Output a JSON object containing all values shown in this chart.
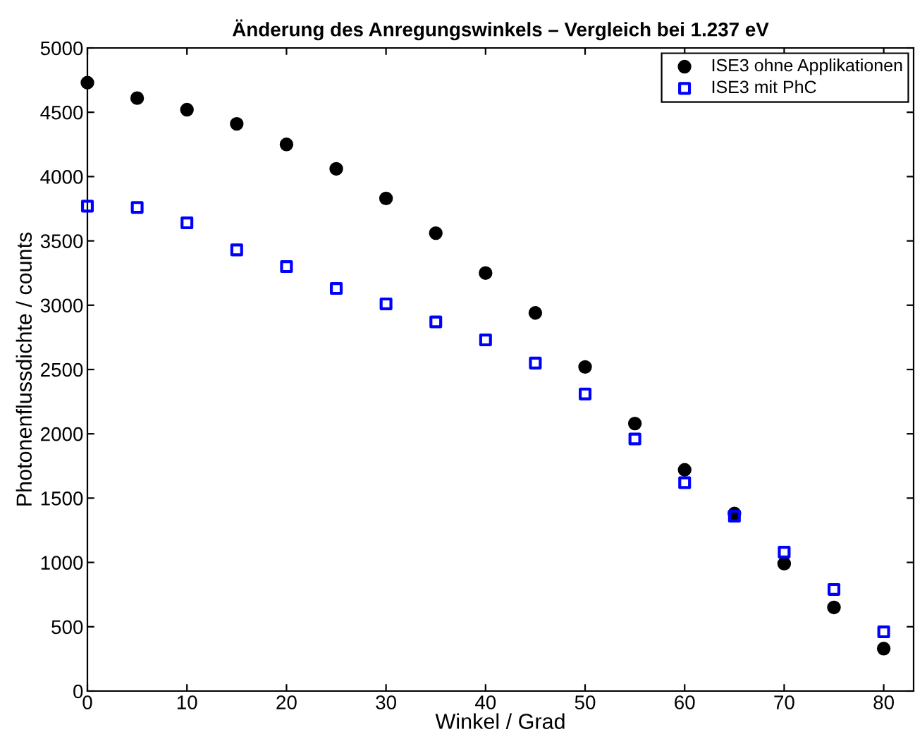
{
  "chart_data": {
    "type": "scatter",
    "title": "Änderung des Anregungswinkels – Vergleich bei 1.237 eV",
    "xlabel": "Winkel / Grad",
    "ylabel": "Photonenflussdichte / counts",
    "x": [
      0,
      5,
      10,
      15,
      20,
      25,
      30,
      35,
      40,
      45,
      50,
      55,
      60,
      65,
      70,
      75,
      80
    ],
    "series": [
      {
        "name": "ISE3 ohne Applikationen",
        "color": "#000000",
        "marker": "circle",
        "values": [
          4730,
          4610,
          4520,
          4410,
          4250,
          4060,
          3830,
          3560,
          3250,
          2940,
          2520,
          2080,
          1720,
          1380,
          990,
          650,
          330
        ]
      },
      {
        "name": "ISE3 mit PhC",
        "color": "#0000ff",
        "marker": "square",
        "values": [
          3770,
          3760,
          3640,
          3430,
          3300,
          3130,
          3010,
          2870,
          2730,
          2550,
          2310,
          1960,
          1620,
          1360,
          1080,
          790,
          460
        ]
      }
    ],
    "xlim": [
      0,
      83
    ],
    "xticks": [
      0,
      10,
      20,
      30,
      40,
      50,
      60,
      70,
      80
    ],
    "ylim": [
      0,
      5000
    ],
    "yticks": [
      0,
      500,
      1000,
      1500,
      2000,
      2500,
      3000,
      3500,
      4000,
      4500,
      5000
    ],
    "grid": false,
    "legend": "top right"
  }
}
